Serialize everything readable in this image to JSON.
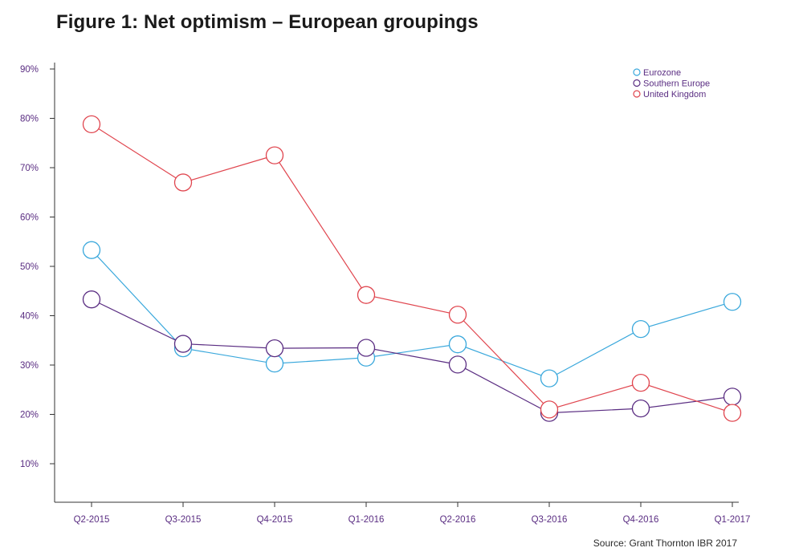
{
  "title": "Figure 1: Net optimism – European groupings",
  "source": "Source: Grant Thornton IBR 2017",
  "colors": {
    "eurozone": "#3aa8dc",
    "southern_europe": "#5a2d82",
    "united_kingdom": "#e0454e",
    "axis": "#333333",
    "tick_label": "#5a2d82"
  },
  "chart_data": {
    "type": "line",
    "title": "Figure 1: Net optimism – European groupings",
    "xlabel": "",
    "ylabel": "",
    "ylim": [
      0,
      90
    ],
    "yticks": [
      10,
      20,
      30,
      40,
      50,
      60,
      70,
      80,
      90
    ],
    "ytick_labels": [
      "10%",
      "20%",
      "30%",
      "40%",
      "50%",
      "60%",
      "70%",
      "80%",
      "90%"
    ],
    "categories": [
      "Q2-2015",
      "Q3-2015",
      "Q4-2015",
      "Q1-2016",
      "Q2-2016",
      "Q3-2016",
      "Q4-2016",
      "Q1-2017"
    ],
    "grid": false,
    "legend_position": "top-right",
    "series": [
      {
        "name": "Eurozone",
        "color": "#3aa8dc",
        "values": [
          53.3,
          33.4,
          30.3,
          31.5,
          34.2,
          27.3,
          37.3,
          42.8
        ]
      },
      {
        "name": "Southern Europe",
        "color": "#5a2d82",
        "values": [
          43.3,
          34.3,
          33.4,
          33.5,
          30.1,
          20.3,
          21.2,
          23.6
        ]
      },
      {
        "name": "United Kingdom",
        "color": "#e0454e",
        "values": [
          78.8,
          67.0,
          72.5,
          44.2,
          40.2,
          21.0,
          26.4,
          20.3
        ]
      }
    ]
  }
}
